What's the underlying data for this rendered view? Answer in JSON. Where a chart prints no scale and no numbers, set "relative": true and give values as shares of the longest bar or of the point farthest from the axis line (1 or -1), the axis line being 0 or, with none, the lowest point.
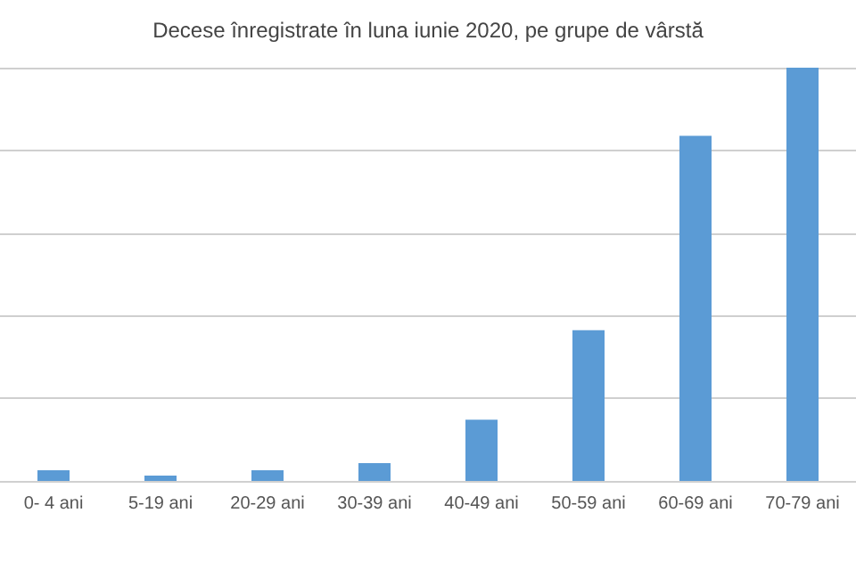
{
  "chart_data": {
    "type": "bar",
    "title": "Decese înregistrate în luna iunie 2020, pe grupe de vârstă",
    "categories": [
      "0- 4 ani",
      "5-19 ani",
      "20-29 ani",
      "30-39 ani",
      "40-49 ani",
      "50-59 ani",
      "60-69 ani",
      "70-79 ani"
    ],
    "values": [
      0.026,
      0.013,
      0.026,
      0.043,
      0.148,
      0.365,
      0.835,
      1
    ],
    "color": "#5b9bd5",
    "relative": true,
    "grid": "y"
  }
}
